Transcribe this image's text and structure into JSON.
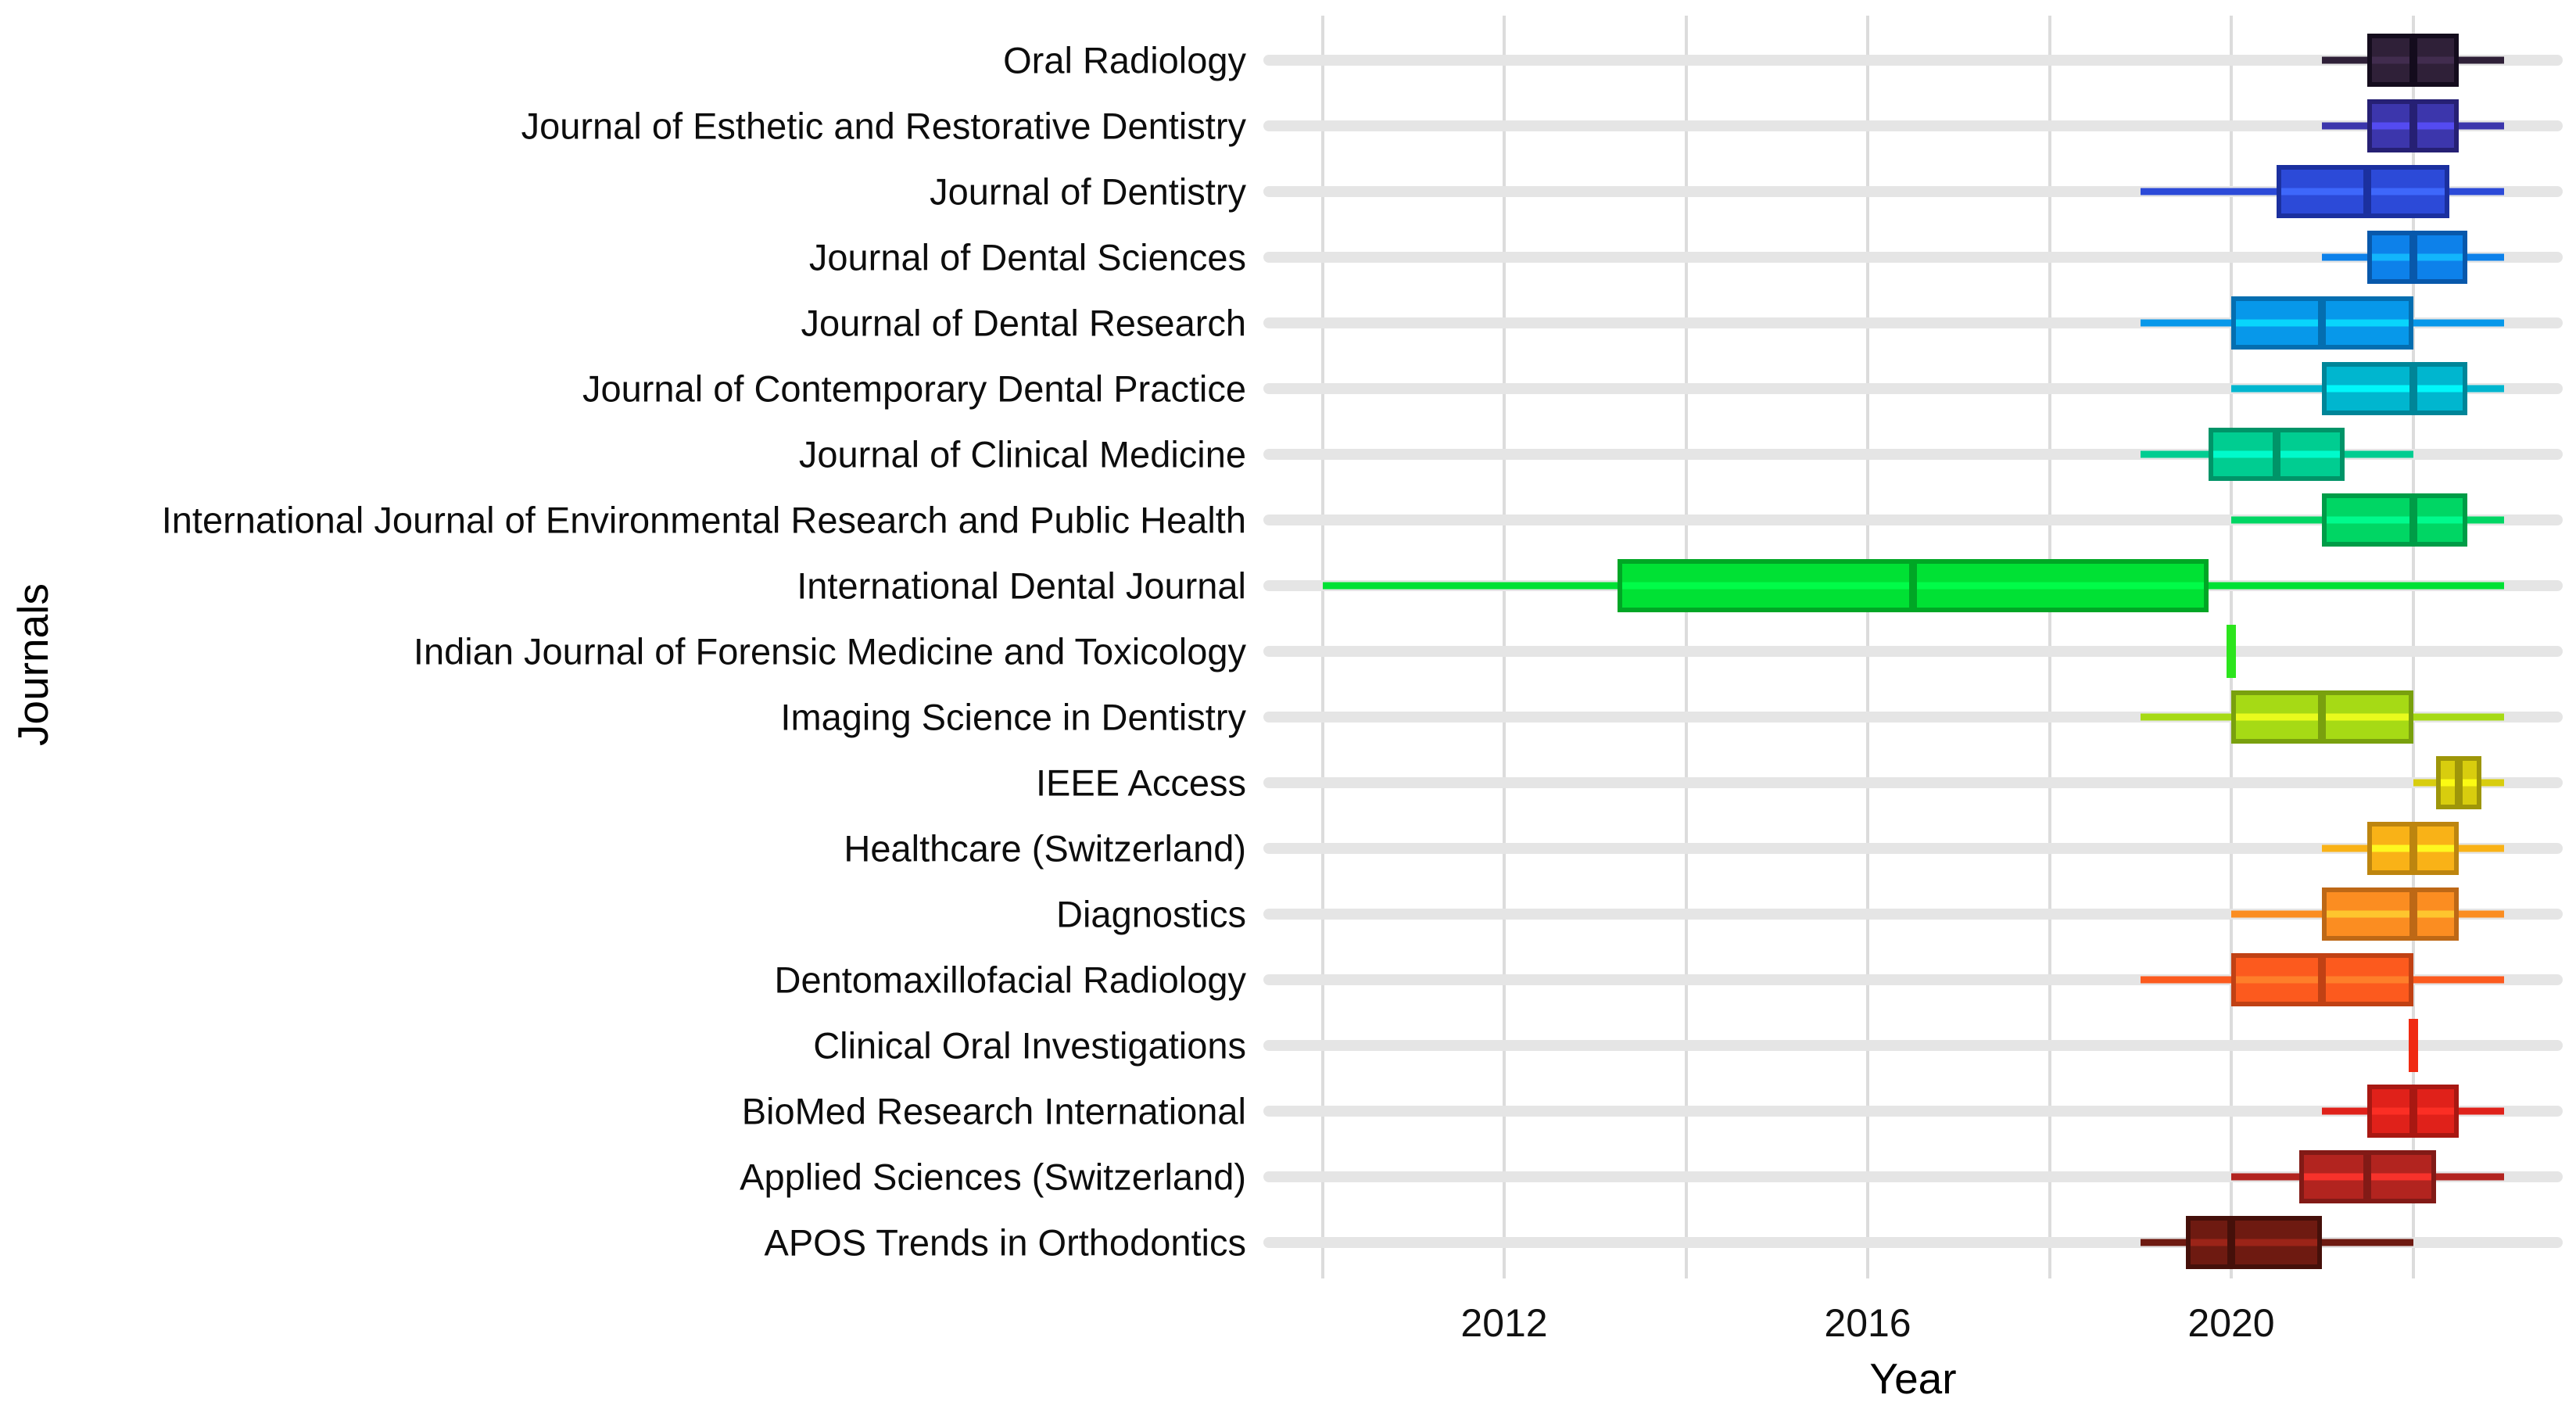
{
  "axes": {
    "x_title": "Year",
    "y_title": "Journals"
  },
  "chart_data": {
    "type": "boxplot",
    "orientation": "horizontal",
    "title": "",
    "xlabel": "Year",
    "ylabel": "Journals",
    "xlim": [
      2009.35,
      2023.65
    ],
    "grid": "on",
    "x_major_ticks": [
      2012,
      2016,
      2020
    ],
    "x_gridline_years": [
      2010,
      2012,
      2014,
      2016,
      2018,
      2020,
      2022
    ],
    "legend": "none",
    "series": [
      {
        "journal": "Oral Radiology",
        "color": "#2f2038",
        "dark": "#140c1d",
        "min": 2021,
        "q1": 2021.5,
        "median": 2022,
        "q3": 2022.5,
        "max": 2023
      },
      {
        "journal": "Journal of Esthetic and Restorative Dentistry",
        "color": "#3c36ac",
        "dark": "#262074",
        "min": 2021,
        "q1": 2021.5,
        "median": 2022,
        "q3": 2022.5,
        "max": 2023
      },
      {
        "journal": "Journal of Dentistry",
        "color": "#2c4ad8",
        "dark": "#1b309f",
        "min": 2019,
        "q1": 2020.5,
        "median": 2021.5,
        "q3": 2022.4,
        "max": 2023
      },
      {
        "journal": "Journal of Dental Sciences",
        "color": "#0d81ea",
        "dark": "#0858ab",
        "min": 2021,
        "q1": 2021.5,
        "median": 2022,
        "q3": 2022.6,
        "max": 2023
      },
      {
        "journal": "Journal of Dental Research",
        "color": "#0798ea",
        "dark": "#046eb0",
        "min": 2019,
        "q1": 2020,
        "median": 2021,
        "q3": 2022,
        "max": 2023
      },
      {
        "journal": "Journal of Contemporary Dental Practice",
        "color": "#00b6cf",
        "dark": "#008598",
        "min": 2020,
        "q1": 2021,
        "median": 2022,
        "q3": 2022.6,
        "max": 2023
      },
      {
        "journal": "Journal of Clinical Medicine",
        "color": "#00cd91",
        "dark": "#009468",
        "min": 2019,
        "q1": 2019.75,
        "median": 2020.5,
        "q3": 2021.25,
        "max": 2022
      },
      {
        "journal": "International Journal of Environmental Research and Public Health",
        "color": "#00d664",
        "dark": "#009c47",
        "min": 2020,
        "q1": 2021,
        "median": 2022,
        "q3": 2022.6,
        "max": 2023
      },
      {
        "journal": "International Dental Journal",
        "color": "#00e134",
        "dark": "#00a625",
        "min": 2010,
        "q1": 2013.25,
        "median": 2016.5,
        "q3": 2019.75,
        "max": 2023
      },
      {
        "journal": "Indian Journal of Forensic Medicine and Toxicology",
        "color": "#2ce51d",
        "dark": "#1fa814",
        "min": 2020,
        "q1": 2020,
        "median": 2020,
        "q3": 2020,
        "max": 2020
      },
      {
        "journal": "Imaging Science in Dentistry",
        "color": "#a6da15",
        "dark": "#79a00e",
        "min": 2019,
        "q1": 2020,
        "median": 2021,
        "q3": 2022,
        "max": 2023
      },
      {
        "journal": "IEEE Access",
        "color": "#d8cd0e",
        "dark": "#9e9609",
        "min": 2022,
        "q1": 2022.25,
        "median": 2022.5,
        "q3": 2022.75,
        "max": 2023
      },
      {
        "journal": "Healthcare (Switzerland)",
        "color": "#f9b217",
        "dark": "#bd850f",
        "min": 2021,
        "q1": 2021.5,
        "median": 2022,
        "q3": 2022.5,
        "max": 2023
      },
      {
        "journal": "Diagnostics",
        "color": "#fb8d21",
        "dark": "#bd6816",
        "min": 2020,
        "q1": 2021,
        "median": 2022,
        "q3": 2022.5,
        "max": 2023
      },
      {
        "journal": "Dentomaxillofacial Radiology",
        "color": "#fc5a1e",
        "dark": "#c04114",
        "min": 2019,
        "q1": 2020,
        "median": 2021,
        "q3": 2022,
        "max": 2023
      },
      {
        "journal": "Clinical Oral Investigations",
        "color": "#f02a12",
        "dark": "#b71f0c",
        "min": 2022,
        "q1": 2022,
        "median": 2022,
        "q3": 2022,
        "max": 2022
      },
      {
        "journal": "BioMed Research International",
        "color": "#e0211a",
        "dark": "#a81812",
        "min": 2021,
        "q1": 2021.5,
        "median": 2022,
        "q3": 2022.5,
        "max": 2023
      },
      {
        "journal": "Applied Sciences (Switzerland)",
        "color": "#b2241f",
        "dark": "#821a16",
        "min": 2020,
        "q1": 2020.75,
        "median": 2021.5,
        "q3": 2022.25,
        "max": 2023
      },
      {
        "journal": "APOS Trends in Orthodontics",
        "color": "#6e1a11",
        "dark": "#45100a",
        "min": 2019,
        "q1": 2019.5,
        "median": 2020,
        "q3": 2021,
        "max": 2022
      }
    ]
  }
}
